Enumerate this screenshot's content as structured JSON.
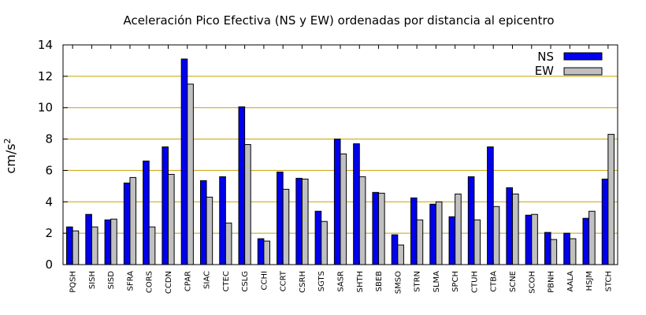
{
  "chart_data": {
    "type": "bar",
    "title": "Aceleración Pico Efectiva (NS y EW) ordenadas por distancia al epicentro",
    "ylabel": "cm/s",
    "ylabel_superscript": "2",
    "xlabel": "",
    "ylim": [
      0,
      14
    ],
    "yticks": [
      0,
      2,
      4,
      6,
      8,
      10,
      12,
      14
    ],
    "grid": "horizontal",
    "legend_position": "top-right",
    "categories": [
      "PQSH",
      "SISH",
      "SISD",
      "SFRA",
      "CORS",
      "CCDN",
      "CPAR",
      "SIAC",
      "CTEC",
      "CSLG",
      "CCHI",
      "CCRT",
      "CSRH",
      "SGTS",
      "SASR",
      "SHTH",
      "SBEB",
      "SMSO",
      "STRN",
      "SLMA",
      "SPCH",
      "CTUH",
      "CTBA",
      "SCNE",
      "SCOH",
      "PBNH",
      "AALA",
      "HSJM",
      "STCH"
    ],
    "series": [
      {
        "name": "NS",
        "color": "#0000ee",
        "values": [
          2.4,
          3.2,
          2.85,
          5.2,
          6.6,
          7.5,
          13.1,
          5.35,
          5.6,
          10.05,
          1.65,
          5.9,
          5.5,
          3.4,
          8.0,
          7.7,
          4.6,
          1.9,
          4.25,
          3.85,
          3.05,
          5.6,
          7.5,
          4.9,
          3.15,
          2.05,
          2.0,
          2.95,
          5.45
        ]
      },
      {
        "name": "EW",
        "color": "#c0c0c0",
        "values": [
          2.15,
          2.4,
          2.9,
          5.55,
          2.4,
          5.75,
          11.5,
          4.3,
          2.65,
          7.65,
          1.5,
          4.8,
          5.45,
          2.75,
          7.05,
          5.6,
          4.55,
          1.25,
          2.85,
          4.0,
          4.5,
          2.85,
          3.7,
          4.5,
          3.2,
          1.6,
          1.65,
          3.4,
          8.3
        ]
      }
    ],
    "colors": {
      "grid": "#c8a000",
      "axis": "#000000"
    }
  }
}
